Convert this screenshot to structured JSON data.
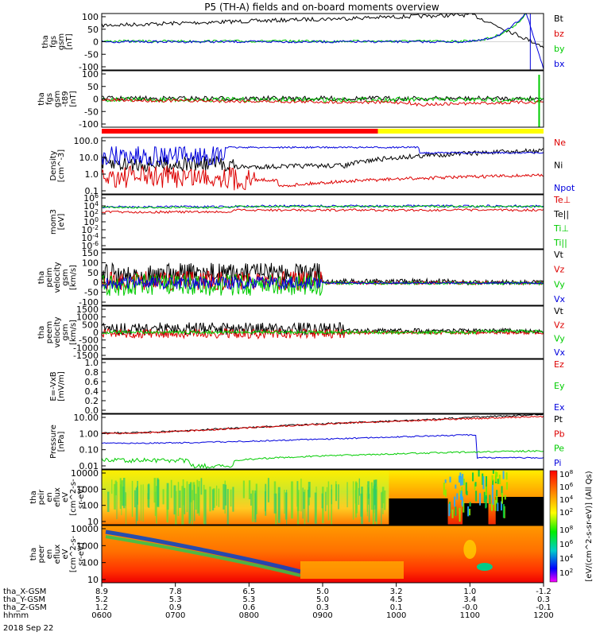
{
  "title": "P5 (TH-A) fields and on-board moments overview",
  "date_label": "2018 Sep 22",
  "x_axis": {
    "rows": [
      {
        "label": "tha_X-GSM",
        "values": [
          "8.9",
          "7.8",
          "6.5",
          "5.0",
          "3.2",
          "1.0",
          "-1.2"
        ]
      },
      {
        "label": "tha_Y-GSM",
        "values": [
          "5.2",
          "5.3",
          "5.3",
          "5.0",
          "4.5",
          "3.4",
          "0.3"
        ]
      },
      {
        "label": "tha_Z-GSM",
        "values": [
          "1.2",
          "0.9",
          "0.6",
          "0.3",
          "0.1",
          "-0.0",
          "-0.1"
        ]
      },
      {
        "label": "hhmm",
        "values": [
          "0600",
          "0700",
          "0800",
          "0900",
          "1000",
          "1100",
          "1200"
        ]
      }
    ]
  },
  "colorbar": {
    "label": "[eV/(cm^2-s-sr-eV)] (All Qs)",
    "ticks": [
      "10^8",
      "10^6",
      "10^4",
      "10^2"
    ],
    "overlap_ticks": [
      "10^8",
      "10^6",
      "10^4",
      "10^2"
    ]
  },
  "status_bar": {
    "colors": [
      "#ff0000",
      "#ffff00"
    ],
    "switch_time": "0945"
  },
  "colors": {
    "black": "#000000",
    "red": "#dd0000",
    "green": "#00cc00",
    "blue": "#0000dd"
  },
  "chart_data": [
    {
      "type": "line",
      "ylabel_lines": [
        "tha",
        "fgs",
        "gsm",
        "[nT]"
      ],
      "ticks": [
        "100",
        "50",
        "0",
        "-50",
        "-100"
      ],
      "ylim": [
        -100,
        100
      ],
      "series": [
        {
          "name": "Bt",
          "color": "#000000"
        },
        {
          "name": "bz",
          "color": "#dd0000"
        },
        {
          "name": "by",
          "color": "#00cc00"
        },
        {
          "name": "bx",
          "color": "#0000dd"
        }
      ]
    },
    {
      "type": "line",
      "ylabel_lines": [
        "tha",
        "fgs",
        "gsm",
        "-t89",
        "[nT]"
      ],
      "ticks": [
        "100",
        "50",
        "0",
        "-50",
        "-100"
      ],
      "ylim": [
        -125,
        125
      ],
      "series": []
    },
    {
      "type": "line",
      "ylabel_lines": [
        "Density",
        "[cm^-3]"
      ],
      "scale": "log",
      "ticks": [
        "100.0",
        "10.0",
        "1.0",
        "0.1"
      ],
      "series": [
        {
          "name": "Ne",
          "color": "#dd0000"
        },
        {
          "name": "Ni",
          "color": "#000000"
        },
        {
          "name": "Npot",
          "color": "#0000dd"
        }
      ]
    },
    {
      "type": "line",
      "ylabel_lines": [
        "mom3",
        "[eV]"
      ],
      "scale": "log",
      "ticks": [
        "10^6",
        "10^4",
        "10^2",
        "10^0",
        "10^-2",
        "10^-4",
        "10^-6"
      ],
      "series": [
        {
          "name": "Te⊥",
          "color": "#dd0000"
        },
        {
          "name": "Te||",
          "color": "#000000"
        },
        {
          "name": "Ti⊥",
          "color": "#00cc00"
        },
        {
          "name": "Ti||",
          "color": "#00cc00"
        }
      ]
    },
    {
      "type": "line",
      "ylabel_lines": [
        "tha",
        "peim",
        "velocity",
        "gsm",
        "[km/s]"
      ],
      "ticks": [
        "150",
        "100",
        "50",
        "0",
        "-50",
        "-100"
      ],
      "ylim": [
        -100,
        150
      ],
      "series": [
        {
          "name": "Vt",
          "color": "#000000"
        },
        {
          "name": "Vz",
          "color": "#dd0000"
        },
        {
          "name": "Vy",
          "color": "#00cc00"
        },
        {
          "name": "Vx",
          "color": "#0000dd"
        }
      ]
    },
    {
      "type": "line",
      "ylabel_lines": [
        "tha",
        "peem",
        "velocity",
        "gsm",
        "[km/s]"
      ],
      "ticks": [
        "1500",
        "1000",
        "500",
        "0",
        "-500",
        "-1000",
        "-1500"
      ],
      "ylim": [
        -1500,
        1500
      ],
      "series": [
        {
          "name": "Vt",
          "color": "#000000"
        },
        {
          "name": "Vz",
          "color": "#dd0000"
        },
        {
          "name": "Vy",
          "color": "#00cc00"
        },
        {
          "name": "Vx",
          "color": "#0000dd"
        }
      ]
    },
    {
      "type": "line",
      "ylabel_lines": [
        "E=-VxB",
        "[mV/m]"
      ],
      "ticks": [
        "1.0",
        "0.8",
        "0.6",
        "0.4",
        "0.2",
        "0.0"
      ],
      "ylim": [
        0,
        1
      ],
      "series": [
        {
          "name": "Ez",
          "color": "#dd0000"
        },
        {
          "name": "Ey",
          "color": "#00cc00"
        },
        {
          "name": "Ex",
          "color": "#0000dd"
        }
      ]
    },
    {
      "type": "line",
      "ylabel_lines": [
        "Pressure",
        "[nPa]"
      ],
      "scale": "log",
      "ticks": [
        "10.00",
        "1.00",
        "0.10",
        "0.01"
      ],
      "series": [
        {
          "name": "Pt",
          "color": "#000000"
        },
        {
          "name": "Pb",
          "color": "#dd0000"
        },
        {
          "name": "Pe",
          "color": "#00cc00"
        },
        {
          "name": "Pi",
          "color": "#0000dd"
        }
      ]
    },
    {
      "type": "heatmap",
      "ylabel_lines": [
        "tha",
        "peir",
        "en",
        "eflux",
        "eV",
        "[cm^2-s-",
        "sr-eV]"
      ],
      "ticks": [
        "10000",
        "1000",
        "100",
        "10"
      ]
    },
    {
      "type": "heatmap",
      "ylabel_lines": [
        "tha",
        "peer",
        "en",
        "eflux",
        "eV",
        "[cm^2-s-",
        "sr-eV]"
      ],
      "ticks": [
        "10000",
        "1000",
        "100",
        "10"
      ]
    }
  ]
}
